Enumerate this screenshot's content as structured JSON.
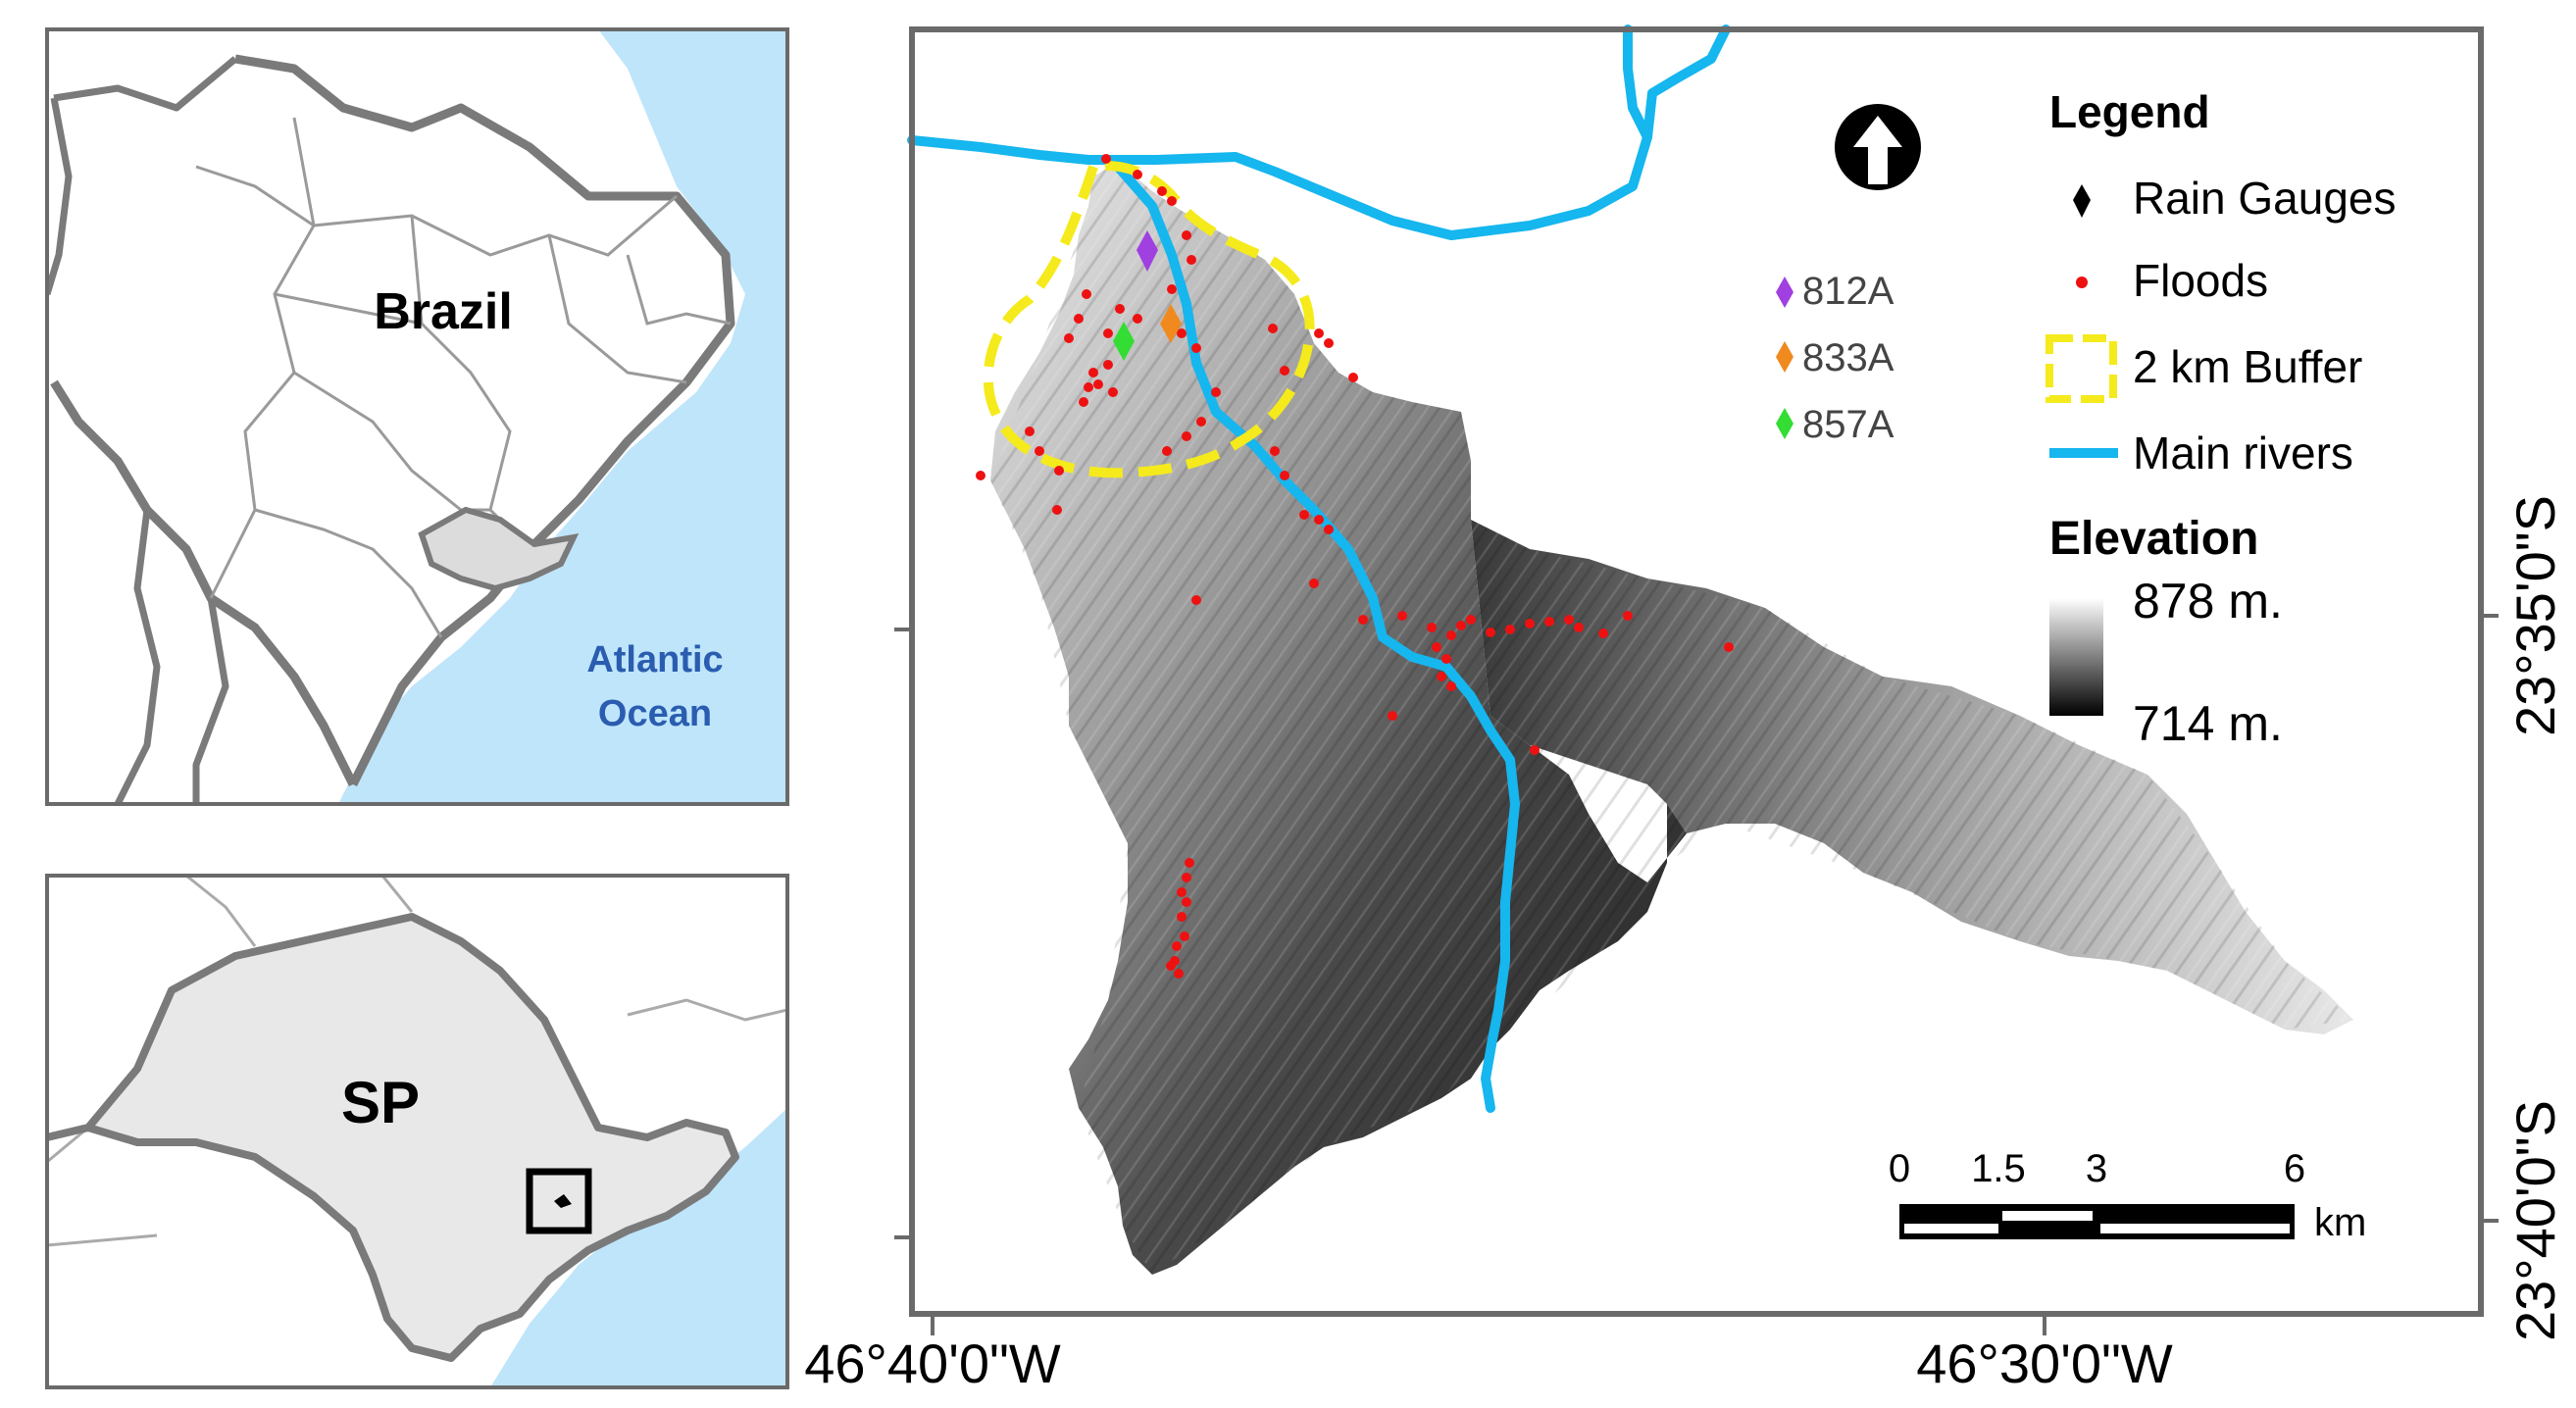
{
  "inset_brazil": {
    "country_label": "Brazil",
    "ocean_label_line1": "Atlantic",
    "ocean_label_line2": "Ocean"
  },
  "inset_state": {
    "state_label": "SP"
  },
  "legend": {
    "title": "Legend",
    "rain_gauges_label": "Rain Gauges",
    "floods_label": "Floods",
    "buffer_label": "2 km Buffer",
    "rivers_label": "Main rivers",
    "elevation_title": "Elevation",
    "elevation_max": "878 m.",
    "elevation_min": "714 m."
  },
  "gauges": [
    {
      "id": "812A",
      "color": "#a040e0"
    },
    {
      "id": "833A",
      "color": "#f08a1e"
    },
    {
      "id": "857A",
      "color": "#33dd33"
    }
  ],
  "scale_bar": {
    "ticks": [
      "0",
      "1.5",
      "3",
      "6"
    ],
    "unit": "km"
  },
  "coordinates": {
    "lon_left": "46°40'0\"W",
    "lon_right": "46°30'0\"W",
    "lat_upper": "23°35'0\"S",
    "lat_lower": "23°40'0\"S"
  },
  "colors": {
    "ocean": "#bfe5fb",
    "land": "#ffffff",
    "state_fill": "#e8e8e8",
    "border": "#7a7a7a",
    "river": "#16b6ee",
    "flood": "#ee1111",
    "buffer": "#f5ea1c"
  }
}
